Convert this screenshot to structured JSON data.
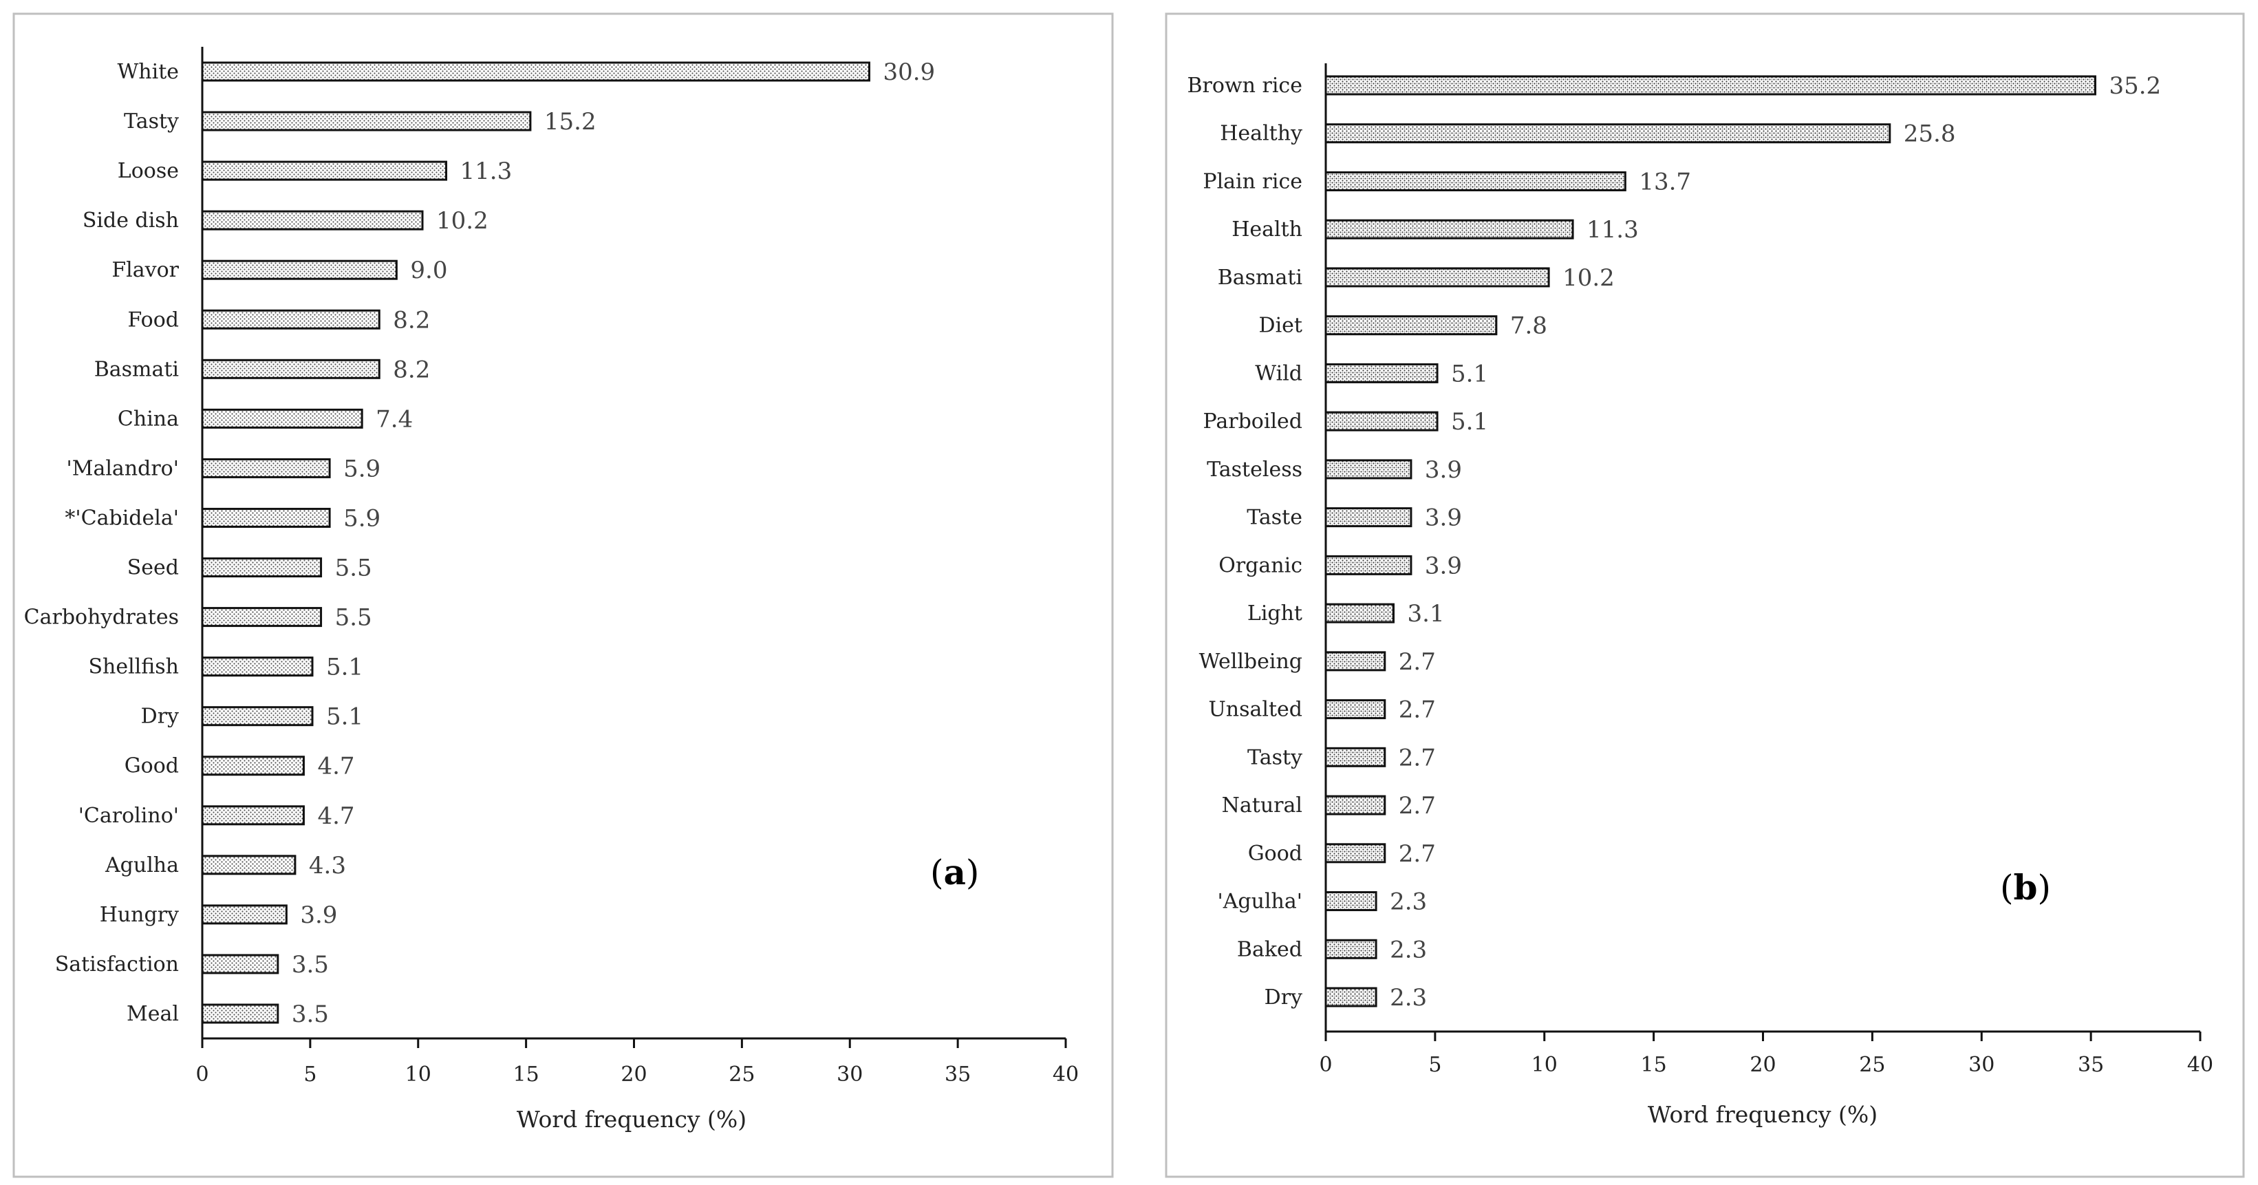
{
  "chart_data": [
    {
      "type": "bar",
      "orientation": "horizontal",
      "panel_label_open": "(",
      "panel_label_letter": "a",
      "panel_label_close": ")",
      "categories": [
        "White",
        "Tasty",
        "Loose",
        "Side dish",
        "Flavor",
        "Food",
        "Basmati",
        "China",
        "'Malandro'",
        "*'Cabidela'",
        "Seed",
        "Carbohydrates",
        "Shellfish",
        "Dry",
        "Good",
        "'Carolino'",
        "Agulha",
        "Hungry",
        "Satisfaction",
        "Meal"
      ],
      "values": [
        30.9,
        15.2,
        11.3,
        10.2,
        9.0,
        8.2,
        8.2,
        7.4,
        5.9,
        5.9,
        5.5,
        5.5,
        5.1,
        5.1,
        4.7,
        4.7,
        4.3,
        3.9,
        3.5,
        3.5
      ],
      "value_labels": [
        "30.9",
        "15.2",
        "11.3",
        "10.2",
        "9.0",
        "8.2",
        "8.2",
        "7.4",
        "5.9",
        "5.9",
        "5.5",
        "5.5",
        "5.1",
        "5.1",
        "4.7",
        "4.7",
        "4.3",
        "3.9",
        "3.5",
        "3.5"
      ],
      "xticks": [
        "0",
        "5",
        "10",
        "15",
        "20",
        "25",
        "30",
        "35",
        "40"
      ],
      "xlim": [
        0,
        40
      ],
      "xlabel": "Word frequency (%)",
      "grid": false,
      "legend": "none"
    },
    {
      "type": "bar",
      "orientation": "horizontal",
      "panel_label_open": "(",
      "panel_label_letter": "b",
      "panel_label_close": ")",
      "categories": [
        "Brown rice",
        "Healthy",
        "Plain rice",
        "Health",
        "Basmati",
        "Diet",
        "Wild",
        "Parboiled",
        "Tasteless",
        "Taste",
        "Organic",
        "Light",
        "Wellbeing",
        "Unsalted",
        "Tasty",
        "Natural",
        "Good",
        "'Agulha'",
        "Baked",
        "Dry"
      ],
      "values": [
        35.2,
        25.8,
        13.7,
        11.3,
        10.2,
        7.8,
        5.1,
        5.1,
        3.9,
        3.9,
        3.9,
        3.1,
        2.7,
        2.7,
        2.7,
        2.7,
        2.7,
        2.3,
        2.3,
        2.3
      ],
      "value_labels": [
        "35.2",
        "25.8",
        "13.7",
        "11.3",
        "10.2",
        "7.8",
        "5.1",
        "5.1",
        "3.9",
        "3.9",
        "3.9",
        "3.1",
        "2.7",
        "2.7",
        "2.7",
        "2.7",
        "2.7",
        "2.3",
        "2.3",
        "2.3"
      ],
      "xticks": [
        "0",
        "5",
        "10",
        "15",
        "20",
        "25",
        "30",
        "35",
        "40"
      ],
      "xlim": [
        0,
        40
      ],
      "xlabel": "Word frequency (%)",
      "grid": false,
      "legend": "none"
    }
  ]
}
